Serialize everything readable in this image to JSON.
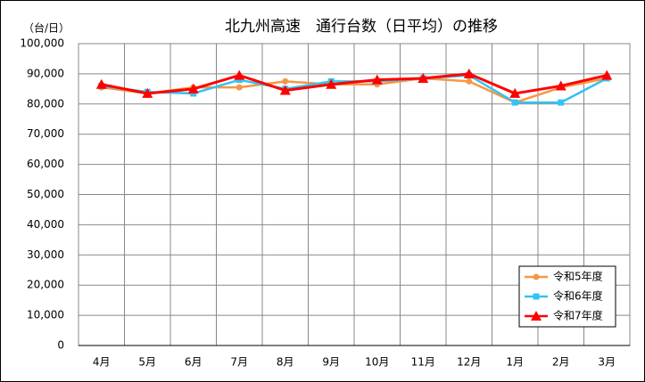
{
  "chart_data": {
    "type": "line",
    "title": "北九州高速　通行台数（日平均）の推移",
    "y_label": "（台/日）",
    "categories": [
      "4月",
      "5月",
      "6月",
      "7月",
      "8月",
      "9月",
      "10月",
      "11月",
      "12月",
      "1月",
      "2月",
      "3月"
    ],
    "series": [
      {
        "name": "令和5年度",
        "color": "#f79646",
        "marker": "circle",
        "values": [
          85500,
          83500,
          85500,
          85500,
          87500,
          86500,
          86500,
          88500,
          87500,
          80500,
          85500,
          88500
        ]
      },
      {
        "name": "令和6年度",
        "color": "#33c3f0",
        "marker": "square",
        "values": [
          86000,
          84000,
          83500,
          88000,
          85000,
          87500,
          87500,
          88500,
          89500,
          80500,
          80500,
          88500
        ]
      },
      {
        "name": "令和7年度",
        "color": "#ff0000",
        "marker": "triangle",
        "values": [
          86500,
          83500,
          85000,
          89500,
          84500,
          86500,
          88000,
          88500,
          90000,
          83500,
          86000,
          89500
        ]
      }
    ],
    "ylim": [
      0,
      100000
    ],
    "yticks": [
      0,
      {
        "value": 10000,
        "label": "10,000"
      },
      {
        "value": 20000,
        "label": "20,000"
      },
      {
        "value": 30000,
        "label": "30,000"
      },
      {
        "value": 40000,
        "label": "40,000"
      },
      {
        "value": 50000,
        "label": "50,000"
      },
      {
        "value": 60000,
        "label": "60,000"
      },
      {
        "value": 70000,
        "label": "70,000"
      },
      {
        "value": 80000,
        "label": "80,000"
      },
      {
        "value": 90000,
        "label": "90,000"
      },
      {
        "value": 100000,
        "label": "100,000"
      }
    ],
    "grid": true,
    "legend": "lower right"
  }
}
